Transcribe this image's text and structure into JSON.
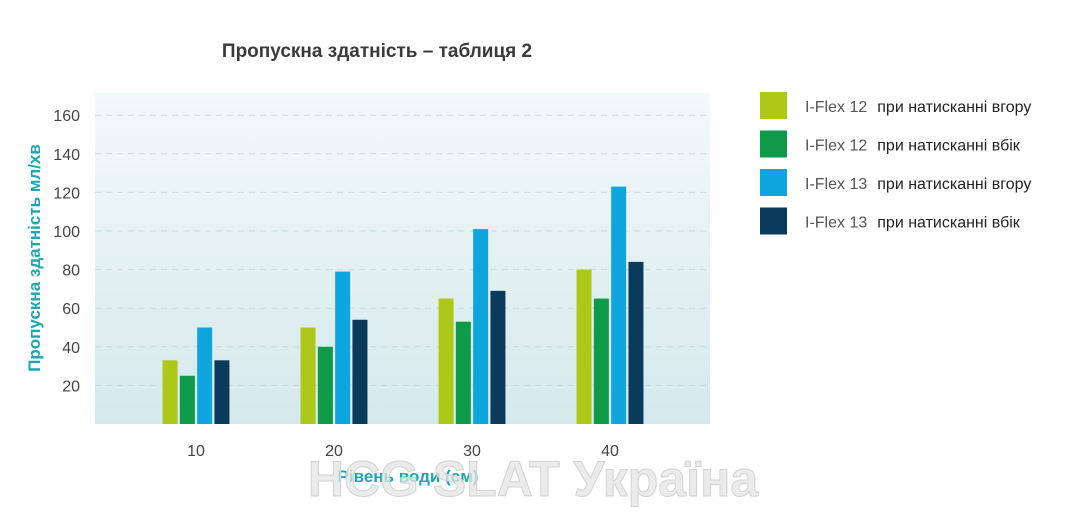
{
  "chart_data": {
    "type": "bar",
    "title": "Пропускна здатність – таблиця 2",
    "xlabel": "Рівень води (см)",
    "ylabel": "Пропускна здатність мл/хв",
    "categories": [
      "10",
      "20",
      "30",
      "40"
    ],
    "ylim": [
      0,
      170
    ],
    "yticks": [
      20,
      40,
      60,
      80,
      100,
      120,
      140,
      160
    ],
    "grid": true,
    "legend_position": "right",
    "series": [
      {
        "name": "I-Flex 12",
        "mode": "при натисканні вгору",
        "color": "#aec81a",
        "values": [
          33,
          50,
          65,
          80
        ]
      },
      {
        "name": "I-Flex 12",
        "mode": "при натисканні вбік",
        "color": "#0f9a4a",
        "values": [
          25,
          40,
          53,
          65
        ]
      },
      {
        "name": "I-Flex 13",
        "mode": "при натисканні вгору",
        "color": "#0fa6e0",
        "values": [
          50,
          79,
          101,
          123
        ]
      },
      {
        "name": "I-Flex 13",
        "mode": "при натисканні вбік",
        "color": "#0a3a5c",
        "values": [
          33,
          54,
          69,
          84
        ]
      }
    ]
  },
  "watermark": "HCG SLAT Україна"
}
